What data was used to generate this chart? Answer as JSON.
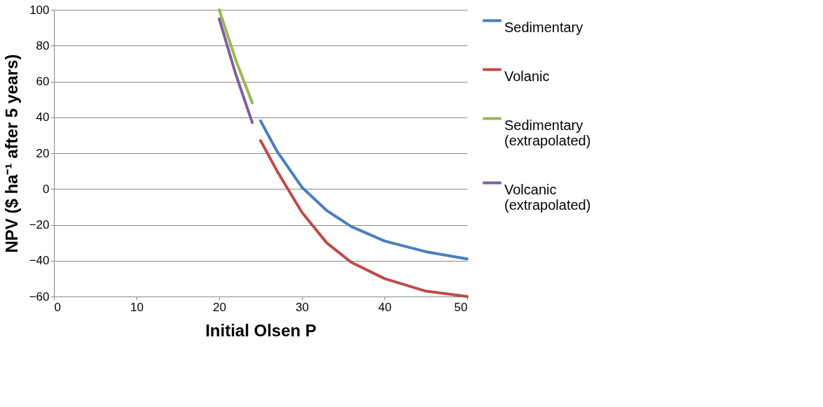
{
  "chart_data": {
    "type": "line",
    "xlabel": "Initial Olsen P",
    "ylabel": "NPV ($ ha⁻¹ after 5 years)",
    "xlim": [
      0,
      50
    ],
    "xticks": [
      0,
      10,
      20,
      30,
      40,
      50
    ],
    "ylim": [
      -60,
      100
    ],
    "yticks": [
      -60,
      -40,
      -20,
      0,
      20,
      40,
      60,
      80,
      100
    ],
    "grid": "y",
    "legend": "right",
    "marker": "none",
    "line_style": "solid",
    "series": [
      {
        "name": "Sedimentary",
        "color": "#4a7ebb",
        "x": [
          25,
          27,
          30,
          33,
          36,
          40,
          45,
          50
        ],
        "values": [
          38,
          21,
          1,
          -12,
          -21,
          -29,
          -35,
          -39
        ]
      },
      {
        "name": "Volanic",
        "color": "#be4b48",
        "x": [
          25,
          27,
          30,
          33,
          36,
          40,
          45,
          50
        ],
        "values": [
          27,
          10,
          -13,
          -30,
          -41,
          -50,
          -57,
          -60
        ]
      },
      {
        "name": "Sedimentary (extrapolated)",
        "color": "#98b954",
        "x": [
          20,
          22,
          24
        ],
        "values": [
          100,
          72,
          48
        ]
      },
      {
        "name": "Volcanic (extrapolated)",
        "color": "#7d60a0",
        "x": [
          20,
          22,
          24
        ],
        "values": [
          95,
          64,
          37
        ]
      }
    ]
  }
}
